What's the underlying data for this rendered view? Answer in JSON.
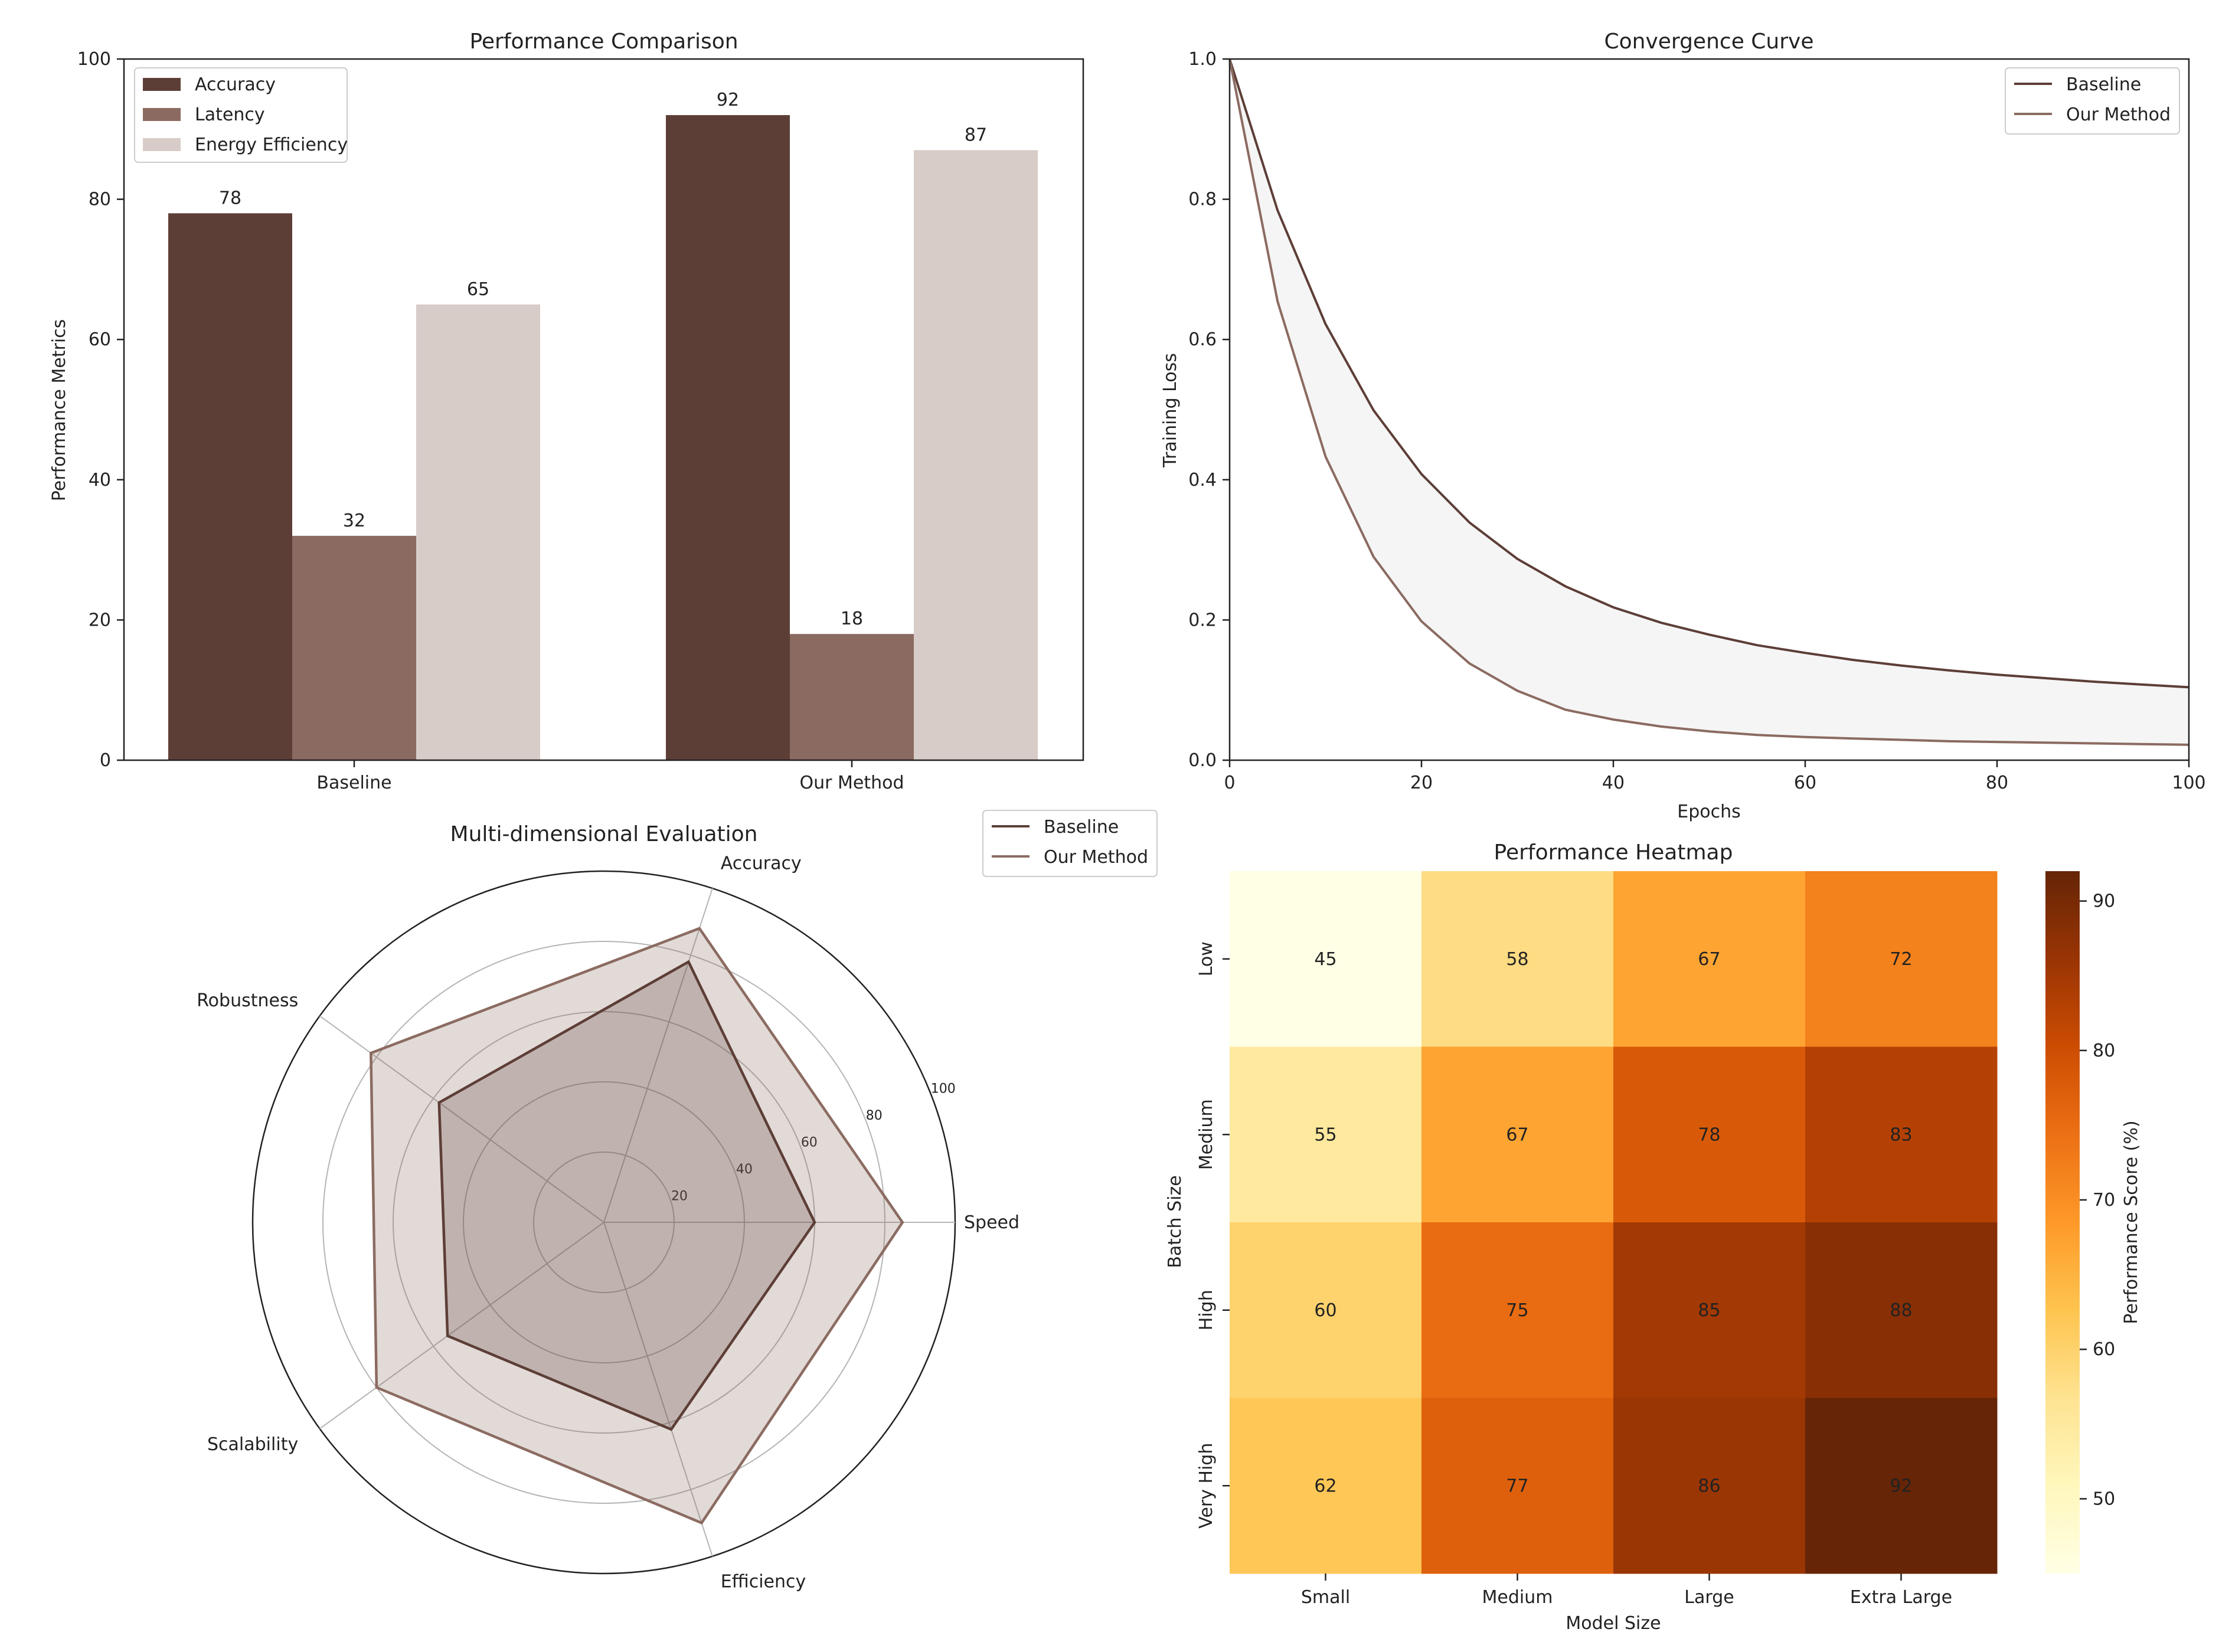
{
  "chart_data": [
    {
      "type": "bar",
      "title": "Performance Comparison",
      "xlabel": "",
      "ylabel": "Performance Metrics",
      "categories": [
        "Baseline",
        "Our Method"
      ],
      "ylim": [
        0,
        100
      ],
      "yticks": [
        "0",
        "20",
        "40",
        "60",
        "80",
        "100"
      ],
      "series": [
        {
          "name": "Accuracy",
          "values": [
            78,
            92
          ],
          "color": "#5d3e37"
        },
        {
          "name": "Latency",
          "values": [
            32,
            18
          ],
          "color": "#8b6b61"
        },
        {
          "name": "Energy Efficiency",
          "values": [
            65,
            87
          ],
          "color": "#d7ccc8"
        }
      ],
      "legend": "top-left",
      "grid": false
    },
    {
      "type": "line",
      "title": "Convergence Curve",
      "xlabel": "Epochs",
      "ylabel": "Training Loss",
      "xlim": [
        0,
        100
      ],
      "ylim": [
        0,
        1.0
      ],
      "xticks": [
        "0",
        "20",
        "40",
        "60",
        "80",
        "100"
      ],
      "yticks": [
        "0.0",
        "0.2",
        "0.4",
        "0.6",
        "0.8",
        "1.0"
      ],
      "series": [
        {
          "name": "Baseline",
          "x": [
            0,
            5,
            10,
            15,
            20,
            25,
            30,
            35,
            40,
            45,
            50,
            55,
            60,
            65,
            70,
            75,
            80,
            85,
            90,
            95,
            100
          ],
          "values": [
            1.0,
            0.784,
            0.622,
            0.499,
            0.408,
            0.339,
            0.287,
            0.248,
            0.218,
            0.196,
            0.179,
            0.164,
            0.153,
            0.143,
            0.135,
            0.128,
            0.122,
            0.117,
            0.112,
            0.108,
            0.104
          ],
          "color": "#5d3e37"
        },
        {
          "name": "Our Method",
          "x": [
            0,
            5,
            10,
            15,
            20,
            25,
            30,
            35,
            40,
            45,
            50,
            55,
            60,
            65,
            70,
            75,
            80,
            85,
            90,
            95,
            100
          ],
          "values": [
            1.0,
            0.654,
            0.433,
            0.29,
            0.198,
            0.138,
            0.099,
            0.072,
            0.058,
            0.048,
            0.041,
            0.036,
            0.033,
            0.031,
            0.029,
            0.027,
            0.026,
            0.025,
            0.024,
            0.023,
            0.022
          ],
          "color": "#8b6b61"
        }
      ],
      "fill_between": true,
      "legend": "top-right",
      "grid": false
    },
    {
      "type": "radar",
      "title": "Multi-dimensional Evaluation",
      "axes": [
        "Speed",
        "Accuracy",
        "Robustness",
        "Scalability",
        "Efficiency"
      ],
      "rlim": [
        0,
        100
      ],
      "rticks": [
        "20",
        "40",
        "60",
        "80",
        "100"
      ],
      "series": [
        {
          "name": "Baseline",
          "values": [
            60,
            78,
            58,
            55,
            62
          ],
          "color": "#5d3e37"
        },
        {
          "name": "Our Method",
          "values": [
            85,
            88,
            82,
            80,
            90
          ],
          "color": "#8b6b61"
        }
      ],
      "legend": "top-right"
    },
    {
      "type": "heatmap",
      "title": "Performance Heatmap",
      "xlabel": "Model Size",
      "ylabel": "Batch Size",
      "x_categories": [
        "Small",
        "Medium",
        "Large",
        "Extra Large"
      ],
      "y_categories": [
        "Low",
        "Medium",
        "High",
        "Very High"
      ],
      "values": [
        [
          45,
          58,
          67,
          72
        ],
        [
          55,
          67,
          78,
          83
        ],
        [
          60,
          75,
          85,
          88
        ],
        [
          62,
          77,
          86,
          92
        ]
      ],
      "colorbar_label": "Performance Score (%)",
      "colorbar_range": [
        45,
        92
      ],
      "colorbar_ticks": [
        "50",
        "60",
        "70",
        "80",
        "90"
      ]
    }
  ]
}
